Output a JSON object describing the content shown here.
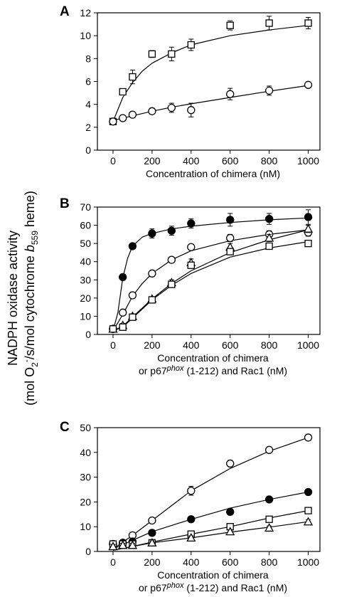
{
  "figure": {
    "ylabel_line1": "NADPH oxidase activity",
    "ylabel_line2_prefix": "(mol O",
    "ylabel_line2_sub": "2",
    "ylabel_line2_sup": "-",
    "ylabel_line2_mid": "/s/mol cytochrome ",
    "ylabel_line2_b": "b",
    "ylabel_line2_b_sub": "559",
    "ylabel_line2_suffix": " heme)"
  },
  "chart_data": [
    {
      "panel": "A",
      "type": "scatter",
      "xlabel_line1": "Concentration of chimera   (nM)",
      "xticks": [
        0,
        200,
        400,
        600,
        800,
        1000
      ],
      "yticks": [
        0,
        2,
        4,
        6,
        8,
        10,
        12
      ],
      "xlim": [
        -80,
        1060
      ],
      "ylim": [
        0,
        12
      ],
      "grid": false,
      "series": [
        {
          "marker": "square-open",
          "x": [
            0,
            50,
            100,
            200,
            300,
            400,
            600,
            800,
            1000
          ],
          "y": [
            2.5,
            5.1,
            6.4,
            8.4,
            8.4,
            9.2,
            10.9,
            11.1,
            11.1
          ],
          "err": [
            0.2,
            0.2,
            0.6,
            0.3,
            0.6,
            0.5,
            0.4,
            0.6,
            0.5
          ],
          "fit": [
            [
              0,
              2.5
            ],
            [
              50,
              4.6
            ],
            [
              100,
              5.9
            ],
            [
              150,
              6.9
            ],
            [
              200,
              7.6
            ],
            [
              300,
              8.5
            ],
            [
              400,
              9.2
            ],
            [
              600,
              10.0
            ],
            [
              800,
              10.5
            ],
            [
              1000,
              10.9
            ]
          ]
        },
        {
          "marker": "circle-open",
          "x": [
            0,
            50,
            100,
            200,
            300,
            400,
            600,
            800,
            1000
          ],
          "y": [
            2.5,
            2.8,
            3.1,
            3.4,
            3.7,
            3.5,
            4.9,
            5.2,
            5.7
          ],
          "err": [
            0.15,
            0.15,
            0.2,
            0.25,
            0.4,
            0.6,
            0.5,
            0.4,
            0.1
          ],
          "fit": [
            [
              0,
              2.6
            ],
            [
              100,
              3.0
            ],
            [
              200,
              3.4
            ],
            [
              300,
              3.75
            ],
            [
              400,
              4.05
            ],
            [
              600,
              4.6
            ],
            [
              800,
              5.15
            ],
            [
              1000,
              5.65
            ]
          ]
        }
      ]
    },
    {
      "panel": "B",
      "type": "scatter",
      "xlabel_line1": "Concentration of chimera",
      "xlabel_line2_a": "or p67",
      "xlabel_line2_sup": "phox",
      "xlabel_line2_b": " (1-212) and Rac1    (nM)",
      "xticks": [
        0,
        200,
        400,
        600,
        800,
        1000
      ],
      "yticks": [
        0,
        10,
        20,
        30,
        40,
        50,
        60,
        70
      ],
      "xlim": [
        -80,
        1060
      ],
      "ylim": [
        0,
        70
      ],
      "grid": false,
      "series": [
        {
          "marker": "circle-filled",
          "x": [
            0,
            50,
            100,
            200,
            300,
            400,
            600,
            800,
            1000
          ],
          "y": [
            3,
            31.5,
            48.5,
            55.5,
            57,
            61,
            63,
            63.5,
            64.5
          ],
          "err": [
            1,
            1,
            1,
            2.5,
            2.5,
            2.5,
            3.5,
            3,
            4
          ],
          "fit": [
            [
              0,
              2
            ],
            [
              25,
              12
            ],
            [
              50,
              31
            ],
            [
              75,
              42
            ],
            [
              100,
              48.5
            ],
            [
              150,
              53.5
            ],
            [
              200,
              55.5
            ],
            [
              300,
              58
            ],
            [
              400,
              59.5
            ],
            [
              600,
              61.5
            ],
            [
              800,
              63
            ],
            [
              1000,
              64
            ]
          ]
        },
        {
          "marker": "circle-open",
          "x": [
            0,
            50,
            100,
            200,
            300,
            400,
            600,
            800,
            1000
          ],
          "y": [
            3,
            12,
            21.5,
            33.5,
            41,
            48,
            53,
            55,
            56
          ],
          "err": [
            1,
            1,
            1,
            1.5,
            1.5,
            1.5,
            2,
            2,
            2
          ],
          "fit": [
            [
              0,
              2
            ],
            [
              50,
              11
            ],
            [
              100,
              21
            ],
            [
              150,
              28
            ],
            [
              200,
              33.5
            ],
            [
              300,
              41
            ],
            [
              400,
              46
            ],
            [
              600,
              51.5
            ],
            [
              800,
              55
            ],
            [
              1000,
              57.5
            ]
          ]
        },
        {
          "marker": "triangle-open",
          "x": [
            0,
            50,
            100,
            200,
            300,
            400,
            600,
            800,
            1000
          ],
          "y": [
            3,
            5,
            10,
            19.5,
            28.5,
            39.5,
            48,
            53,
            58
          ],
          "err": [
            1,
            1,
            1,
            1,
            1.5,
            2,
            2,
            2,
            2
          ],
          "fit": [
            [
              0,
              2
            ],
            [
              50,
              4.5
            ],
            [
              100,
              9.5
            ],
            [
              200,
              19.5
            ],
            [
              300,
              28
            ],
            [
              400,
              35
            ],
            [
              600,
              45
            ],
            [
              800,
              52
            ],
            [
              1000,
              57.5
            ]
          ]
        },
        {
          "marker": "square-open",
          "x": [
            0,
            50,
            100,
            200,
            300,
            400,
            600,
            800,
            1000
          ],
          "y": [
            3,
            4,
            9.5,
            19,
            27.5,
            38,
            45.5,
            48.5,
            50
          ],
          "err": [
            1,
            1,
            1,
            1,
            1,
            1.5,
            1.5,
            1.5,
            1.5
          ],
          "fit": [
            [
              0,
              2
            ],
            [
              50,
              4
            ],
            [
              100,
              9
            ],
            [
              200,
              19
            ],
            [
              300,
              27
            ],
            [
              400,
              33.5
            ],
            [
              600,
              42.5
            ],
            [
              800,
              47.5
            ],
            [
              1000,
              51
            ]
          ]
        }
      ]
    },
    {
      "panel": "C",
      "type": "scatter",
      "xlabel_line1": "Concentration of chimera",
      "xlabel_line2_a": "or p67",
      "xlabel_line2_sup": "phox",
      "xlabel_line2_b": " (1-212) and Rac1    (nM)",
      "xticks": [
        0,
        200,
        400,
        600,
        800,
        1000
      ],
      "yticks": [
        0,
        10,
        20,
        30,
        40,
        50
      ],
      "xlim": [
        -80,
        1060
      ],
      "ylim": [
        0,
        50
      ],
      "grid": false,
      "series": [
        {
          "marker": "circle-open",
          "x": [
            0,
            50,
            100,
            200,
            400,
            600,
            800,
            1000
          ],
          "y": [
            3,
            3.5,
            6.5,
            12.5,
            24.5,
            35.5,
            41,
            46
          ],
          "err": [
            0.8,
            0.8,
            0.8,
            0.8,
            1.8,
            1,
            1,
            1
          ],
          "fit": [
            [
              0,
              1
            ],
            [
              100,
              6.5
            ],
            [
              200,
              12.5
            ],
            [
              300,
              18.5
            ],
            [
              400,
              24.5
            ],
            [
              600,
              33.5
            ],
            [
              800,
              40.5
            ],
            [
              1000,
              46
            ]
          ]
        },
        {
          "marker": "circle-filled",
          "x": [
            0,
            50,
            100,
            200,
            400,
            600,
            800,
            1000
          ],
          "y": [
            3,
            3.5,
            4,
            7.5,
            13,
            16,
            21,
            24
          ],
          "err": [
            0.8,
            0.8,
            0.8,
            0.8,
            1,
            1,
            1,
            1
          ],
          "fit": [
            [
              0,
              1
            ],
            [
              100,
              4.5
            ],
            [
              200,
              8
            ],
            [
              400,
              13
            ],
            [
              600,
              17.5
            ],
            [
              800,
              21
            ],
            [
              1000,
              24
            ]
          ]
        },
        {
          "marker": "square-open",
          "x": [
            0,
            50,
            100,
            200,
            400,
            600,
            800,
            1000
          ],
          "y": [
            3,
            3,
            3,
            3.5,
            7,
            10,
            13,
            16.5
          ],
          "err": [
            0.8,
            0.8,
            0.8,
            0.8,
            0.8,
            0.8,
            0.8,
            0.8
          ],
          "fit": [
            [
              0,
              0.5
            ],
            [
              100,
              2
            ],
            [
              200,
              3.8
            ],
            [
              400,
              7
            ],
            [
              600,
              10
            ],
            [
              800,
              13.5
            ],
            [
              1000,
              16.5
            ]
          ]
        },
        {
          "marker": "triangle-open",
          "x": [
            0,
            50,
            100,
            200,
            400,
            600,
            800,
            1000
          ],
          "y": [
            2,
            2.5,
            2.5,
            3.5,
            5.5,
            8,
            9.5,
            12
          ],
          "err": [
            0.8,
            0.8,
            0.8,
            0.8,
            0.8,
            0.8,
            0.8,
            0.8
          ],
          "fit": [
            [
              0,
              0.5
            ],
            [
              100,
              2
            ],
            [
              200,
              3.5
            ],
            [
              400,
              5.5
            ],
            [
              600,
              7.8
            ],
            [
              800,
              9.8
            ],
            [
              1000,
              12
            ]
          ]
        }
      ]
    }
  ]
}
